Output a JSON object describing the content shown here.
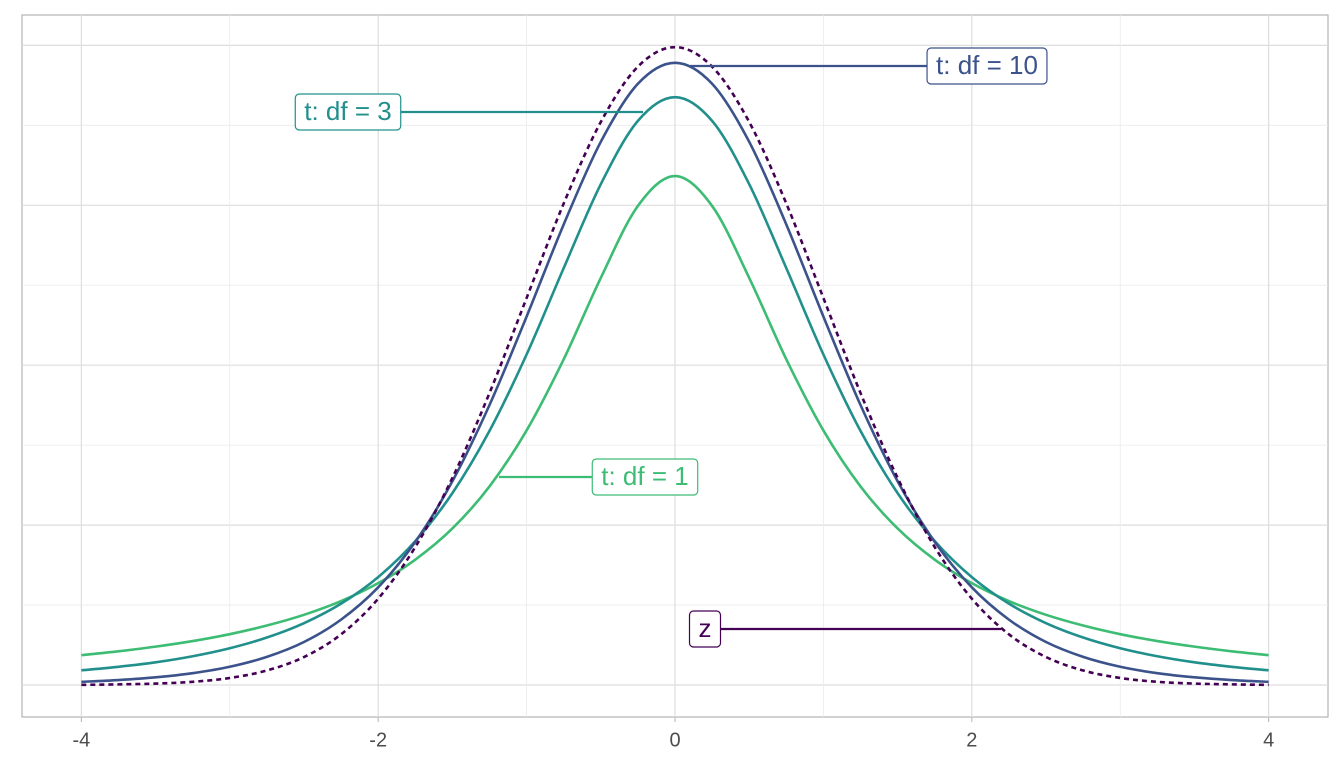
{
  "chart_data": {
    "type": "line",
    "x": [
      -4,
      -3.75,
      -3.5,
      -3.25,
      -3,
      -2.75,
      -2.5,
      -2.25,
      -2,
      -1.75,
      -1.5,
      -1.25,
      -1,
      -0.75,
      -0.5,
      -0.25,
      0,
      0.25,
      0.5,
      0.75,
      1,
      1.25,
      1.5,
      1.75,
      2,
      2.25,
      2.5,
      2.75,
      3,
      3.25,
      3.5,
      3.75,
      4
    ],
    "series": [
      {
        "name": "t: df = 1",
        "color": "#3dbc74",
        "dash": false,
        "values": [
          0.0187,
          0.0211,
          0.024,
          0.0275,
          0.0318,
          0.0372,
          0.0439,
          0.0525,
          0.0637,
          0.0784,
          0.0979,
          0.1242,
          0.1592,
          0.2037,
          0.2546,
          0.2996,
          0.3183,
          0.2996,
          0.2546,
          0.2037,
          0.1592,
          0.1242,
          0.0979,
          0.0784,
          0.0637,
          0.0525,
          0.0439,
          0.0372,
          0.0318,
          0.0275,
          0.024,
          0.0211,
          0.0187
        ]
      },
      {
        "name": "t: df = 3",
        "color": "#21908c",
        "dash": false,
        "values": [
          0.0092,
          0.0114,
          0.0142,
          0.018,
          0.023,
          0.0297,
          0.0387,
          0.0509,
          0.0675,
          0.09,
          0.12,
          0.1589,
          0.2067,
          0.2607,
          0.3132,
          0.3528,
          0.3676,
          0.3528,
          0.3132,
          0.2607,
          0.2067,
          0.1589,
          0.12,
          0.09,
          0.0675,
          0.0509,
          0.0387,
          0.0297,
          0.023,
          0.018,
          0.0142,
          0.0114,
          0.0092
        ]
      },
      {
        "name": "t: df = 10",
        "color": "#3b528b",
        "dash": false,
        "values": [
          0.002,
          0.0031,
          0.0048,
          0.0074,
          0.0114,
          0.0176,
          0.0269,
          0.0409,
          0.0611,
          0.0895,
          0.1274,
          0.1751,
          0.2304,
          0.288,
          0.3397,
          0.376,
          0.3891,
          0.376,
          0.3397,
          0.288,
          0.2304,
          0.1751,
          0.1274,
          0.0895,
          0.0611,
          0.0409,
          0.0269,
          0.0176,
          0.0114,
          0.0074,
          0.0048,
          0.0031,
          0.002
        ]
      },
      {
        "name": "z",
        "color": "#440154",
        "dash": true,
        "values": [
          0.0001,
          0.0004,
          0.0009,
          0.002,
          0.0044,
          0.0091,
          0.0175,
          0.0317,
          0.054,
          0.0863,
          0.1295,
          0.1826,
          0.242,
          0.3011,
          0.3521,
          0.3867,
          0.3989,
          0.3867,
          0.3521,
          0.3011,
          0.242,
          0.1826,
          0.1295,
          0.0863,
          0.054,
          0.0317,
          0.0175,
          0.0091,
          0.0044,
          0.002,
          0.0009,
          0.0004,
          0.0001
        ]
      }
    ],
    "xlim": [
      -4.4,
      4.4
    ],
    "ylim": [
      -0.02,
      0.419
    ],
    "xticks": [
      -4,
      -2,
      0,
      2,
      4
    ],
    "xgrid": [
      -4,
      -3,
      -2,
      -1,
      0,
      1,
      2,
      3,
      4
    ],
    "ygrid": [
      0,
      0.05,
      0.1,
      0.15,
      0.2,
      0.25,
      0.3,
      0.35,
      0.4
    ],
    "grid": true
  }
}
